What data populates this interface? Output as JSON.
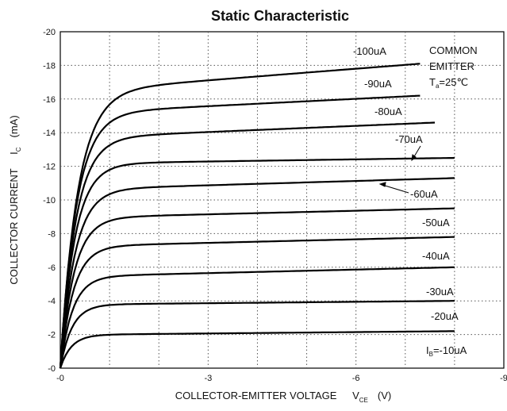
{
  "chart_data": {
    "type": "line",
    "title": "Static Characteristic",
    "xlabel": {
      "text": "COLLECTOR-EMITTER VOLTAGE",
      "symbol": "V",
      "subscript": "CE",
      "unit": "(V)"
    },
    "ylabel": {
      "text": "COLLECTOR CURRENT",
      "symbol": "I",
      "subscript": "C",
      "unit": "(mA)"
    },
    "x_ticks": [
      "-0",
      "-3",
      "-6",
      "-9"
    ],
    "y_ticks": [
      "-0",
      "-2",
      "-4",
      "-6",
      "-8",
      "-10",
      "-12",
      "-14",
      "-16",
      "-18",
      "-20"
    ],
    "xlim": [
      0,
      -9
    ],
    "ylim": [
      0,
      -20
    ],
    "grid": "dotted",
    "annotation": {
      "line1": "COMMON",
      "line2": "EMITTER",
      "cond_symbol": "T",
      "cond_subscript": "a",
      "cond_value": "=25℃"
    },
    "series": [
      {
        "name": "-10uA",
        "label_symbol": "I",
        "label_subscript": "B",
        "label_value": "=-10uA",
        "knee_v": -0.75,
        "ic_knee": -2.0,
        "v_end": -8.0,
        "ic_end": -2.2
      },
      {
        "name": "-20uA",
        "label_value": "-20uA",
        "knee_v": -0.8,
        "ic_knee": -3.8,
        "v_end": -8.0,
        "ic_end": -4.0
      },
      {
        "name": "-30uA",
        "label_value": "-30uA",
        "knee_v": -0.85,
        "ic_knee": -5.5,
        "v_end": -8.0,
        "ic_end": -6.0
      },
      {
        "name": "-40uA",
        "label_value": "-40uA",
        "knee_v": -0.9,
        "ic_knee": -7.3,
        "v_end": -8.0,
        "ic_end": -7.8
      },
      {
        "name": "-50uA",
        "label_value": "-50uA",
        "knee_v": -0.95,
        "ic_knee": -9.0,
        "v_end": -8.0,
        "ic_end": -9.5
      },
      {
        "name": "-60uA",
        "label_value": "-60uA",
        "knee_v": -1.0,
        "ic_knee": -10.7,
        "v_end": -8.0,
        "ic_end": -11.3
      },
      {
        "name": "-70uA",
        "label_value": "-70uA",
        "knee_v": -1.0,
        "ic_knee": -12.2,
        "v_end": -8.0,
        "ic_end": -12.5
      },
      {
        "name": "-80uA",
        "label_value": "-80uA",
        "knee_v": -1.05,
        "ic_knee": -13.8,
        "v_end": -7.6,
        "ic_end": -14.6
      },
      {
        "name": "-90uA",
        "label_value": "-90uA",
        "knee_v": -1.1,
        "ic_knee": -15.3,
        "v_end": -7.3,
        "ic_end": -16.2
      },
      {
        "name": "-100uA",
        "label_value": "-100uA",
        "knee_v": -1.2,
        "ic_knee": -16.7,
        "v_end": -7.3,
        "ic_end": -18.1
      }
    ]
  }
}
